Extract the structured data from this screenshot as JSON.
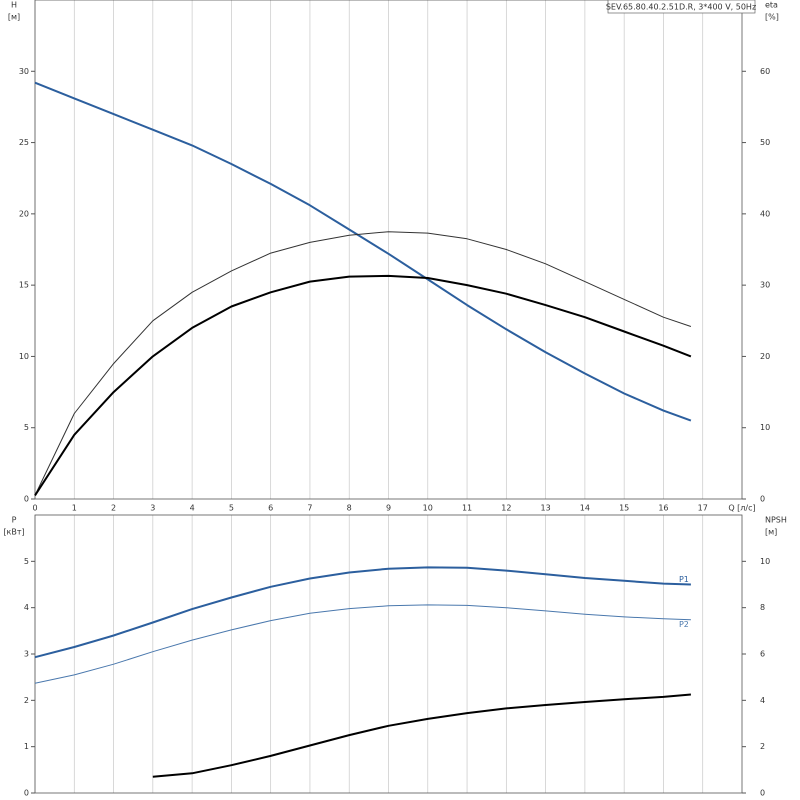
{
  "chart_data": [
    {
      "type": "line",
      "title": "SEV.65.80.40.2.51D.R, 3*400 V, 50Hz",
      "ylabel": "H",
      "yunit": "[м]",
      "y2label": "eta",
      "y2unit": "[%]",
      "xlabel": "Q [л/с]",
      "x": [
        0,
        1,
        2,
        3,
        4,
        5,
        6,
        7,
        8,
        9,
        10,
        11,
        12,
        13,
        14,
        15,
        16,
        16.7
      ],
      "xlim": [
        0,
        18
      ],
      "xticks": [
        0,
        1,
        2,
        3,
        4,
        5,
        6,
        7,
        8,
        9,
        10,
        11,
        12,
        13,
        14,
        15,
        16,
        17
      ],
      "xtick_labels": true,
      "ylim": [
        0,
        35
      ],
      "yticks": [
        0,
        5,
        10,
        15,
        20,
        25,
        30
      ],
      "y2lim": [
        0,
        70
      ],
      "y2ticks": [
        0,
        10,
        20,
        30,
        40,
        50,
        60
      ],
      "grid": "vertical",
      "series": [
        {
          "color": "#2c5f9e",
          "line_width": 2,
          "values": [
            29.2,
            28.1,
            27.0,
            25.9,
            24.8,
            23.5,
            22.1,
            20.6,
            18.9,
            17.2,
            15.4,
            13.6,
            11.9,
            10.3,
            8.8,
            7.4,
            6.2,
            5.5
          ]
        },
        {
          "color": "#333333",
          "line_width": 1,
          "axis": "y2",
          "values": [
            0.5,
            12,
            19,
            25,
            29,
            32,
            34.5,
            36,
            37,
            37.5,
            37.3,
            36.5,
            35,
            33,
            30.5,
            28,
            25.5,
            24.2
          ]
        },
        {
          "color": "#000000",
          "line_width": 2,
          "axis": "y2",
          "values": [
            0.5,
            9,
            15,
            20,
            24,
            27,
            29,
            30.5,
            31.2,
            31.3,
            31,
            30,
            28.8,
            27.2,
            25.5,
            23.5,
            21.5,
            20
          ]
        }
      ]
    },
    {
      "type": "line",
      "ylabel": "P",
      "yunit": "[кВт]",
      "y2label": "NPSH",
      "y2unit": "[м]",
      "x": [
        0,
        1,
        2,
        3,
        4,
        5,
        6,
        7,
        8,
        9,
        10,
        11,
        12,
        13,
        14,
        15,
        16,
        16.7
      ],
      "xlim": [
        0,
        18
      ],
      "xticks": [
        0,
        1,
        2,
        3,
        4,
        5,
        6,
        7,
        8,
        9,
        10,
        11,
        12,
        13,
        14,
        15,
        16,
        17
      ],
      "xtick_labels": false,
      "ylim": [
        0,
        6
      ],
      "yticks": [
        0,
        1,
        2,
        3,
        4,
        5
      ],
      "y2lim": [
        0,
        12
      ],
      "y2ticks": [
        0,
        2,
        4,
        6,
        8,
        10
      ],
      "grid": "vertical",
      "series": [
        {
          "name": "P1",
          "color": "#2c5f9e",
          "line_width": 2,
          "values": [
            2.93,
            3.15,
            3.4,
            3.68,
            3.97,
            4.22,
            4.45,
            4.63,
            4.76,
            4.84,
            4.87,
            4.86,
            4.8,
            4.72,
            4.64,
            4.58,
            4.52,
            4.5
          ]
        },
        {
          "name": "P2",
          "color": "#4a78ad",
          "line_width": 1,
          "values": [
            2.37,
            2.55,
            2.78,
            3.05,
            3.3,
            3.52,
            3.72,
            3.88,
            3.98,
            4.04,
            4.06,
            4.05,
            4.0,
            3.93,
            3.86,
            3.8,
            3.76,
            3.74
          ]
        },
        {
          "color": "#000000",
          "line_width": 2,
          "axis": "y2",
          "values": [
            null,
            null,
            null,
            0.7,
            0.85,
            1.2,
            1.6,
            2.05,
            2.5,
            2.9,
            3.2,
            3.45,
            3.65,
            3.8,
            3.93,
            4.05,
            4.15,
            4.25
          ]
        }
      ]
    }
  ]
}
